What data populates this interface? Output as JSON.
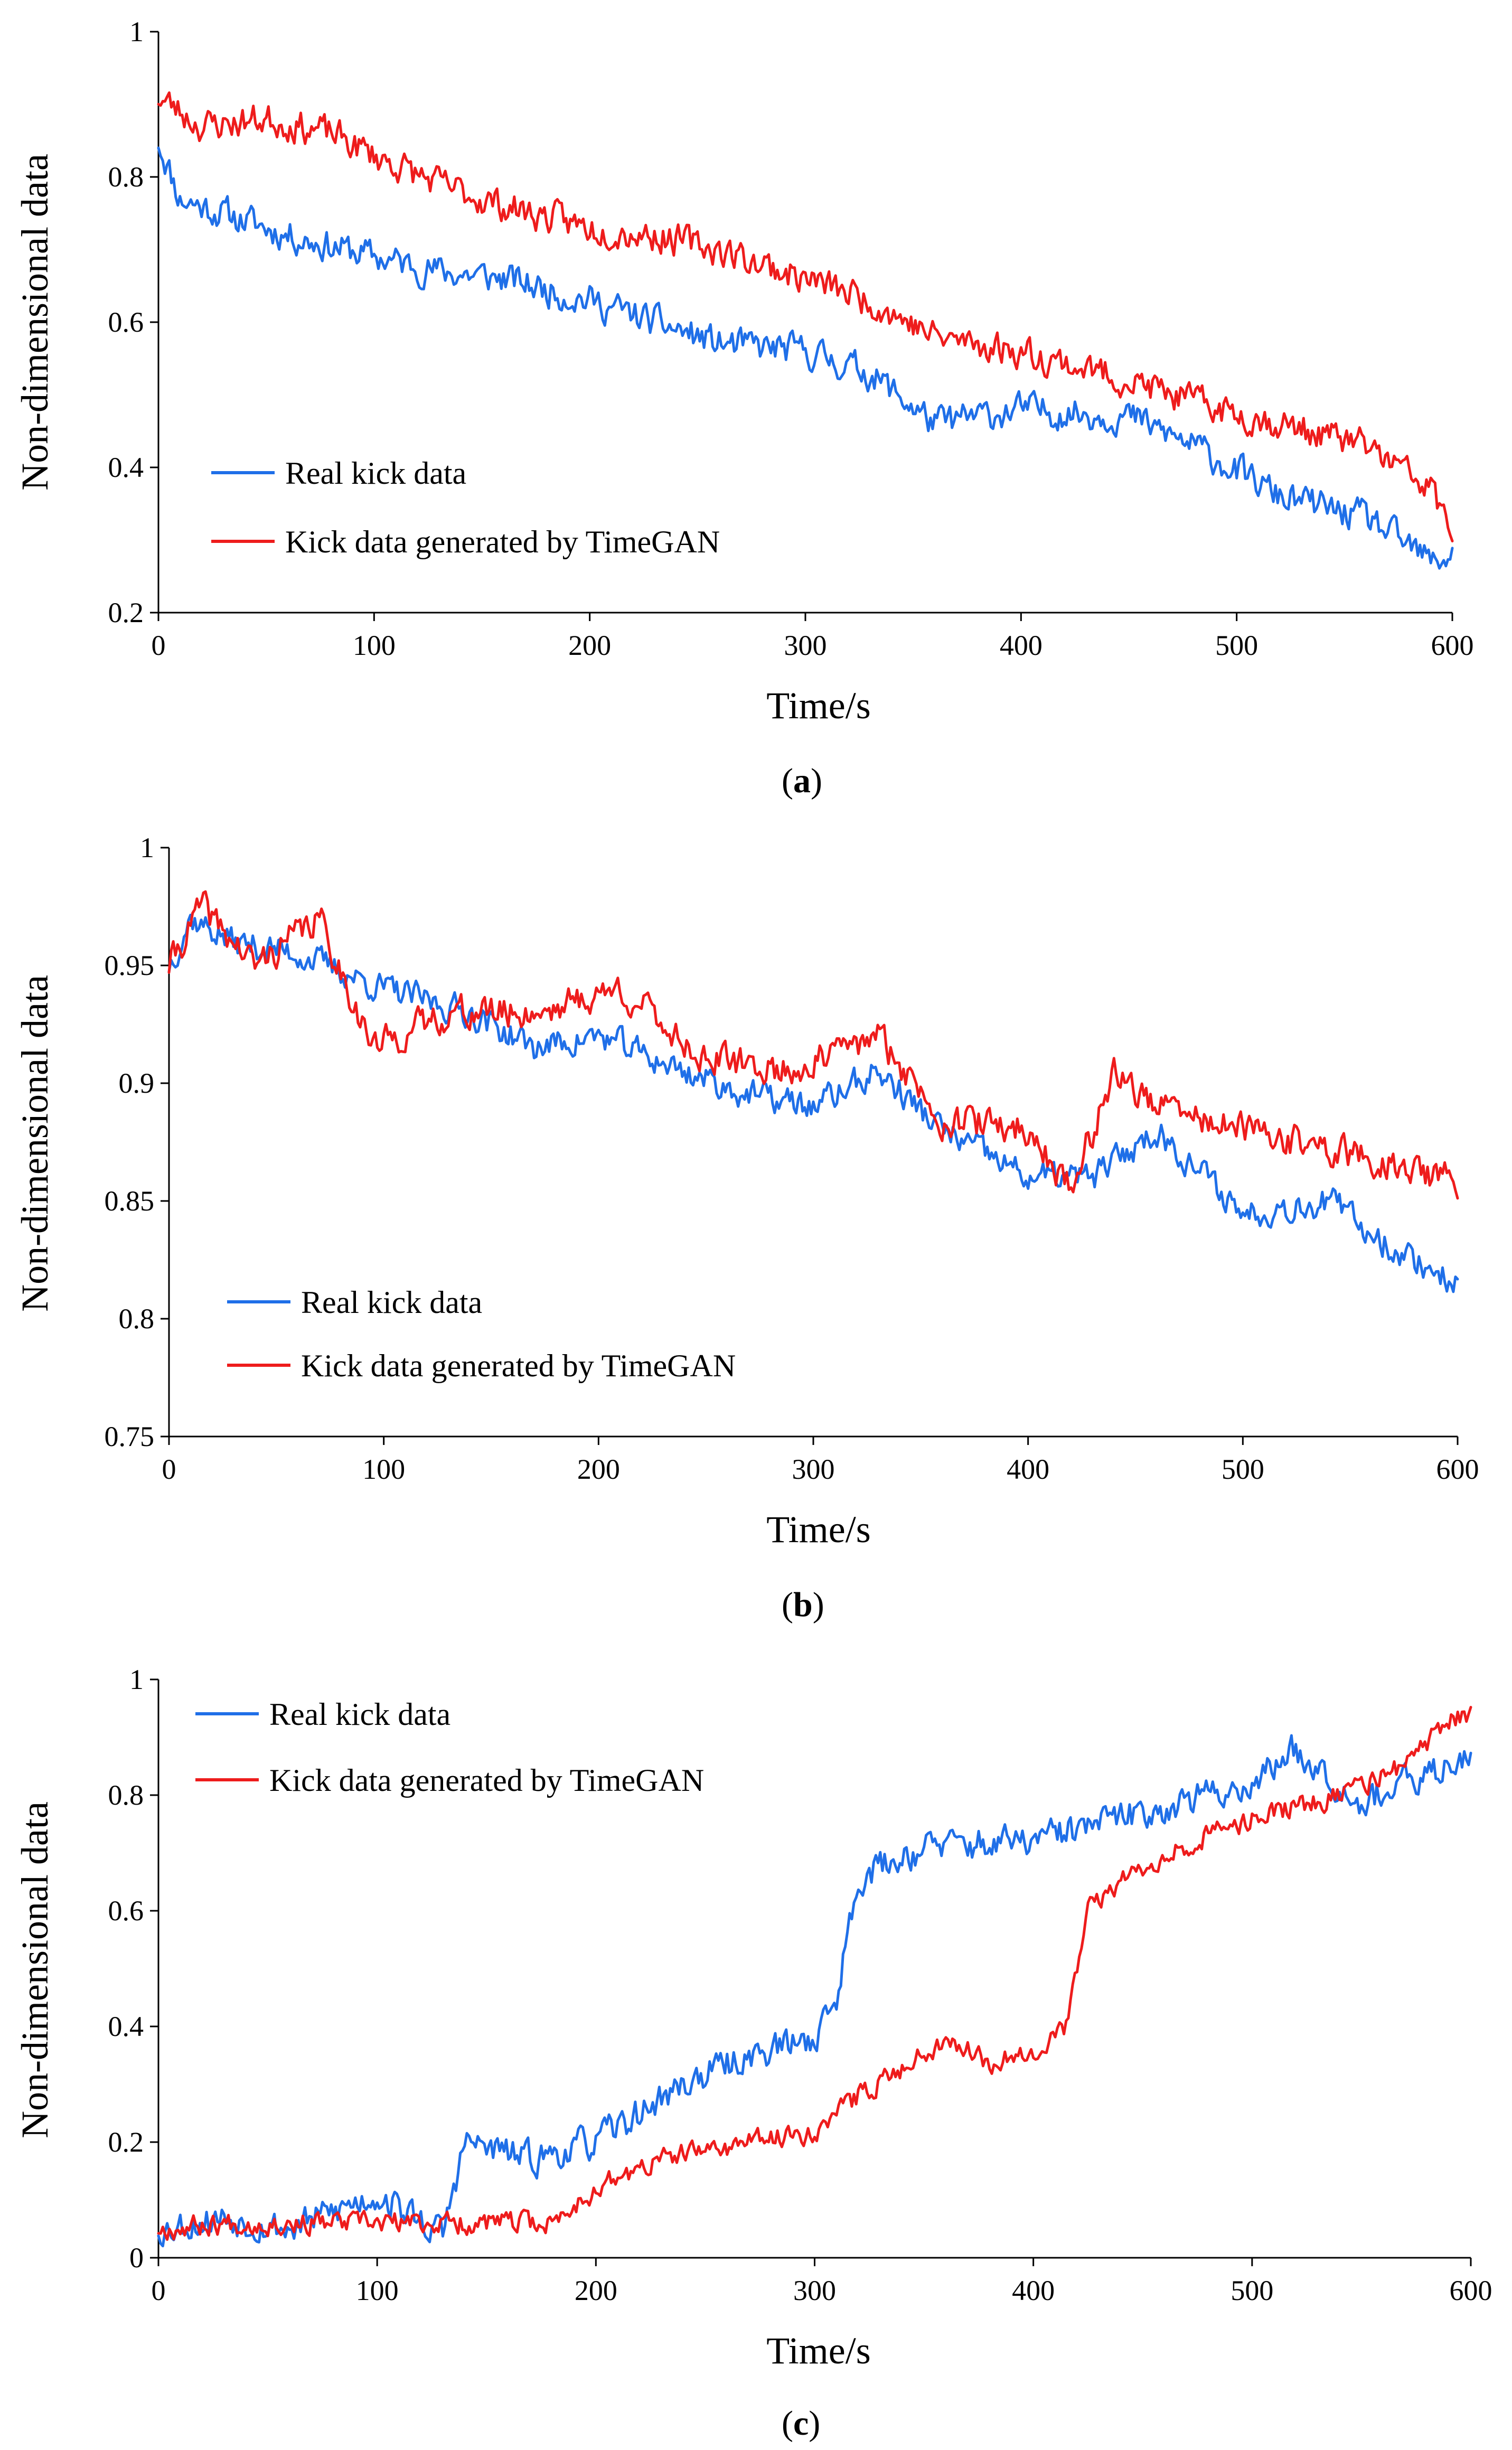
{
  "colors": {
    "real": "#1f6fe8",
    "timegan": "#ee1c1c",
    "axis": "#000000"
  },
  "chart_data": [
    {
      "id": "a",
      "type": "line",
      "caption_letter": "a",
      "xlabel": "Time/s",
      "ylabel": "Non-dimensional data",
      "xlim": [
        0,
        600
      ],
      "ylim": [
        0.2,
        1.0
      ],
      "xticks": [
        "0",
        "100",
        "200",
        "300",
        "400",
        "500",
        "600"
      ],
      "yticks": [
        "0.2",
        "0.4",
        "0.6",
        "0.8",
        "1"
      ],
      "legend_position": "lower-left",
      "series": [
        {
          "name": "Real kick data",
          "color": "#1f6fe8",
          "noise": 0.035,
          "seed": 11,
          "x": [
            0,
            10,
            30,
            60,
            100,
            130,
            160,
            200,
            230,
            260,
            300,
            330,
            360,
            400,
            450,
            480,
            520,
            560,
            590,
            600
          ],
          "y": [
            0.85,
            0.77,
            0.75,
            0.72,
            0.69,
            0.67,
            0.66,
            0.63,
            0.6,
            0.57,
            0.56,
            0.53,
            0.46,
            0.48,
            0.47,
            0.43,
            0.36,
            0.33,
            0.27,
            0.28
          ]
        },
        {
          "name": "Kick data generated by TimeGAN",
          "color": "#ee1c1c",
          "noise": 0.035,
          "seed": 23,
          "x": [
            0,
            20,
            50,
            80,
            100,
            130,
            160,
            200,
            230,
            260,
            300,
            330,
            360,
            400,
            450,
            480,
            520,
            560,
            590,
            600
          ],
          "y": [
            0.91,
            0.87,
            0.88,
            0.86,
            0.83,
            0.79,
            0.76,
            0.73,
            0.72,
            0.7,
            0.66,
            0.63,
            0.58,
            0.56,
            0.52,
            0.49,
            0.46,
            0.43,
            0.37,
            0.31
          ]
        }
      ]
    },
    {
      "id": "b",
      "type": "line",
      "caption_letter": "b",
      "xlabel": "Time/s",
      "ylabel": "Non-dimensional data",
      "xlim": [
        0,
        600
      ],
      "ylim": [
        0.75,
        1.0
      ],
      "xticks": [
        "0",
        "100",
        "200",
        "300",
        "400",
        "500",
        "600"
      ],
      "yticks": [
        "0.75",
        "0.8",
        "0.85",
        "0.9",
        "0.95",
        "1"
      ],
      "legend_position": "lower-left",
      "series": [
        {
          "name": "Real kick data",
          "color": "#1f6fe8",
          "noise": 0.01,
          "seed": 37,
          "x": [
            0,
            10,
            30,
            60,
            100,
            140,
            170,
            200,
            240,
            270,
            300,
            330,
            360,
            400,
            430,
            460,
            500,
            540,
            570,
            600
          ],
          "y": [
            0.95,
            0.97,
            0.96,
            0.955,
            0.94,
            0.93,
            0.915,
            0.92,
            0.905,
            0.895,
            0.89,
            0.905,
            0.88,
            0.86,
            0.86,
            0.88,
            0.845,
            0.85,
            0.83,
            0.815
          ]
        },
        {
          "name": "Kick data generated by TimeGAN",
          "color": "#ee1c1c",
          "noise": 0.011,
          "seed": 41,
          "x": [
            0,
            15,
            40,
            70,
            95,
            130,
            170,
            210,
            250,
            290,
            330,
            360,
            400,
            420,
            440,
            460,
            500,
            540,
            570,
            600
          ],
          "y": [
            0.95,
            0.975,
            0.95,
            0.97,
            0.915,
            0.93,
            0.93,
            0.94,
            0.91,
            0.905,
            0.92,
            0.885,
            0.88,
            0.855,
            0.905,
            0.89,
            0.88,
            0.872,
            0.865,
            0.858
          ]
        }
      ]
    },
    {
      "id": "c",
      "type": "line",
      "caption_letter": "c",
      "xlabel": "Time/s",
      "ylabel": "Non-dimensional data",
      "xlim": [
        0,
        600
      ],
      "ylim": [
        0,
        1.0
      ],
      "xticks": [
        "0",
        "100",
        "200",
        "300",
        "400",
        "500",
        "600"
      ],
      "yticks": [
        "0",
        "0.2",
        "0.4",
        "0.6",
        "0.8",
        "1"
      ],
      "legend_position": "top-left",
      "series": [
        {
          "name": "Real kick data",
          "color": "#1f6fe8",
          "noise": 0.045,
          "seed": 53,
          "x": [
            0,
            30,
            60,
            100,
            130,
            140,
            170,
            200,
            240,
            270,
            300,
            310,
            320,
            350,
            400,
            450,
            500,
            520,
            550,
            580,
            600
          ],
          "y": [
            0.05,
            0.07,
            0.05,
            0.11,
            0.04,
            0.2,
            0.17,
            0.2,
            0.3,
            0.35,
            0.38,
            0.45,
            0.66,
            0.71,
            0.72,
            0.77,
            0.82,
            0.88,
            0.79,
            0.83,
            0.88
          ]
        },
        {
          "name": "Kick data generated by TimeGAN",
          "color": "#ee1c1c",
          "noise": 0.03,
          "seed": 67,
          "x": [
            0,
            30,
            60,
            100,
            140,
            180,
            200,
            230,
            270,
            300,
            320,
            340,
            360,
            380,
            400,
            415,
            425,
            440,
            460,
            500,
            540,
            570,
            590,
            600
          ],
          "y": [
            0.05,
            0.06,
            0.06,
            0.06,
            0.06,
            0.06,
            0.12,
            0.17,
            0.2,
            0.22,
            0.28,
            0.33,
            0.38,
            0.34,
            0.36,
            0.4,
            0.6,
            0.65,
            0.7,
            0.76,
            0.8,
            0.85,
            0.93,
            0.94
          ]
        }
      ]
    }
  ]
}
